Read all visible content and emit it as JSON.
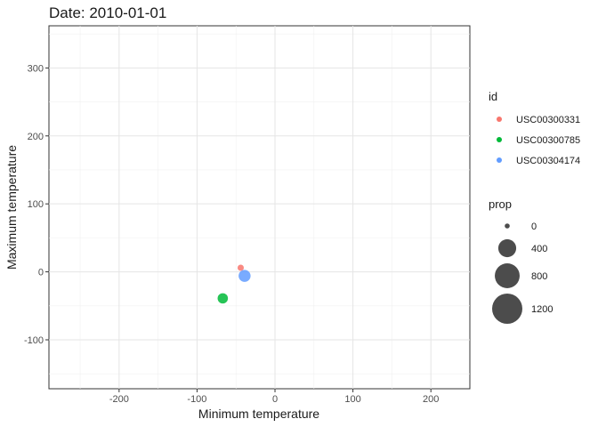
{
  "chart_data": {
    "type": "scatter",
    "title": "Date: 2010-01-01",
    "xlabel": "Minimum temperature",
    "ylabel": "Maximum temperature",
    "xlim": [
      -290,
      250
    ],
    "ylim": [
      -172,
      362
    ],
    "x_ticks": [
      -200,
      -100,
      0,
      100,
      200
    ],
    "y_ticks": [
      -100,
      0,
      100,
      200,
      300
    ],
    "grid": true,
    "legend_position": "right",
    "color_legend": {
      "title": "id",
      "entries": [
        {
          "label": "USC00300331",
          "color": "#F8766D"
        },
        {
          "label": "USC00300785",
          "color": "#00BA38"
        },
        {
          "label": "USC00304174",
          "color": "#619CFF"
        }
      ]
    },
    "size_legend": {
      "title": "prop",
      "entries": [
        {
          "label": "0",
          "value": 0
        },
        {
          "label": "400",
          "value": 400
        },
        {
          "label": "800",
          "value": 800
        },
        {
          "label": "1200",
          "value": 1200
        }
      ]
    },
    "series": [
      {
        "id": "USC00300331",
        "color": "#F8766D",
        "x": -44,
        "y": 6,
        "prop": 20
      },
      {
        "id": "USC00300785",
        "color": "#00BA38",
        "x": -67,
        "y": -39,
        "prop": 110
      },
      {
        "id": "USC00304174",
        "color": "#619CFF",
        "x": -39,
        "y": -6,
        "prop": 160
      }
    ]
  }
}
